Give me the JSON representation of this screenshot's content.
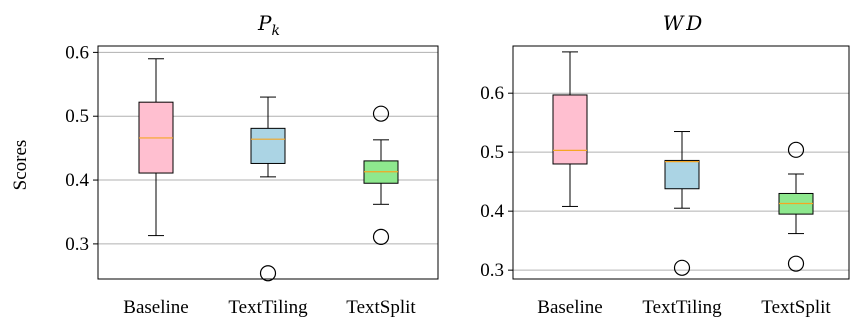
{
  "chart_data": [
    {
      "type": "box",
      "title": "P",
      "title_sub": "k",
      "ylabel": "Scores",
      "ylim": [
        0.245,
        0.61
      ],
      "yticks": [
        0.3,
        0.4,
        0.5,
        0.6
      ],
      "ytick_labels": [
        "0.3",
        "0.4",
        "0.5",
        "0.6"
      ],
      "grid": "horizontal",
      "categories": [
        "Baseline",
        "TextTiling",
        "TextSplit"
      ],
      "colors": [
        "#ffbfd0",
        "#abd4e4",
        "#8ee88e"
      ],
      "median_color": "#f5a623",
      "boxes": [
        {
          "whisker_low": 0.313,
          "q1": 0.411,
          "median": 0.466,
          "q3": 0.522,
          "whisker_high": 0.59,
          "outliers": []
        },
        {
          "whisker_low": 0.405,
          "q1": 0.426,
          "median": 0.464,
          "q3": 0.481,
          "whisker_high": 0.53,
          "outliers": [
            0.254
          ]
        },
        {
          "whisker_low": 0.362,
          "q1": 0.395,
          "median": 0.413,
          "q3": 0.43,
          "whisker_high": 0.463,
          "outliers": [
            0.311,
            0.504
          ]
        }
      ]
    },
    {
      "type": "box",
      "title": "WD",
      "title_sub": "",
      "ylabel": "",
      "ylim": [
        0.285,
        0.68
      ],
      "yticks": [
        0.3,
        0.4,
        0.5,
        0.6
      ],
      "ytick_labels": [
        "0.3",
        "0.4",
        "0.5",
        "0.6"
      ],
      "grid": "horizontal",
      "categories": [
        "Baseline",
        "TextTiling",
        "TextSplit"
      ],
      "colors": [
        "#ffbfd0",
        "#abd4e4",
        "#8ee88e"
      ],
      "median_color": "#f5a623",
      "boxes": [
        {
          "whisker_low": 0.408,
          "q1": 0.48,
          "median": 0.503,
          "q3": 0.597,
          "whisker_high": 0.67,
          "outliers": []
        },
        {
          "whisker_low": 0.405,
          "q1": 0.438,
          "median": 0.484,
          "q3": 0.486,
          "whisker_high": 0.535,
          "outliers": [
            0.304
          ]
        },
        {
          "whisker_low": 0.362,
          "q1": 0.395,
          "median": 0.413,
          "q3": 0.43,
          "whisker_high": 0.463,
          "outliers": [
            0.311,
            0.504
          ]
        }
      ]
    }
  ]
}
